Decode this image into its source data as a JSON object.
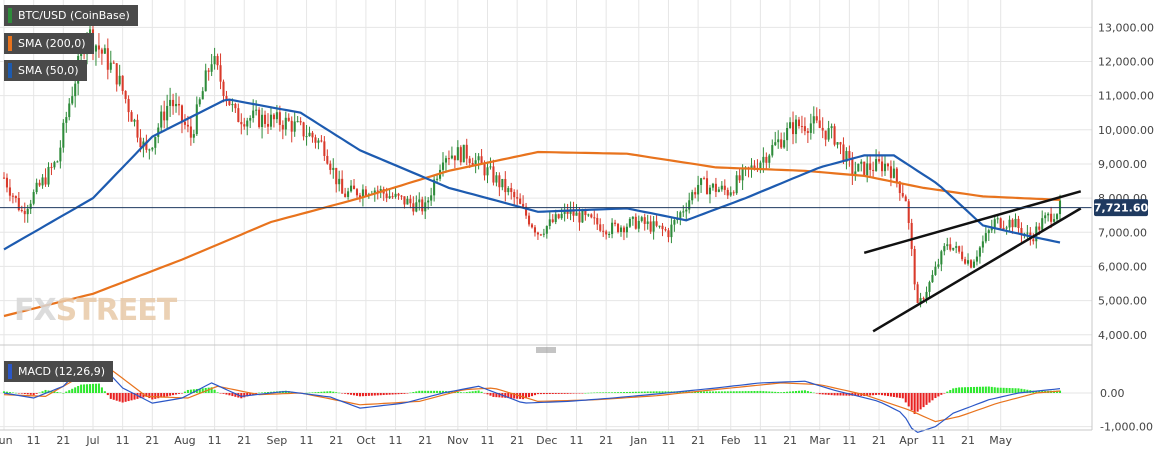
{
  "colors": {
    "up": "#2e8b3a",
    "down": "#d93a2b",
    "sma200": "#e8731d",
    "sma50": "#1d5bb0",
    "price_tag_bg": "#1f3a60",
    "macd_line": "#2b57c7",
    "signal_line": "#e8731d",
    "hist_pos": "#2ee82e",
    "hist_neg": "#e82020",
    "grid": "#e6e6e6",
    "trendline": "#111111"
  },
  "legend": {
    "main_series": "BTC/USD (CoinBase)",
    "sma200": "SMA (200,0)",
    "sma50": "SMA (50,0)",
    "macd": "MACD (12,26,9)"
  },
  "watermark": {
    "fx": "FX",
    "street": "STREET"
  },
  "price_tag": "7,721.60",
  "chart_data": [
    {
      "type": "candlestick",
      "ylim": [
        3700,
        13800
      ],
      "y_ticks": [
        "4,000.00",
        "5,000.00",
        "6,000.00",
        "7,000.00",
        "8,000.00",
        "9,000.00",
        "10,000.00",
        "11,000.00",
        "12,000.00",
        "13,000.00"
      ],
      "y_tick_values": [
        4000,
        5000,
        6000,
        7000,
        8000,
        9000,
        10000,
        11000,
        12000,
        13000
      ],
      "x_ticks": [
        "Jun",
        "11",
        "21",
        "Jul",
        "11",
        "21",
        "Aug",
        "11",
        "21",
        "Sep",
        "11",
        "21",
        "Oct",
        "11",
        "21",
        "Nov",
        "11",
        "21",
        "Dec",
        "11",
        "21",
        "Jan",
        "11",
        "21",
        "Feb",
        "11",
        "21",
        "Mar",
        "11",
        "21",
        "Apr",
        "11",
        "21",
        "May"
      ],
      "last_price": 7721.6,
      "price_waypoints": [
        [
          0,
          8600
        ],
        [
          6,
          7600
        ],
        [
          18,
          9100
        ],
        [
          22,
          10800
        ],
        [
          28,
          12900
        ],
        [
          38,
          11600
        ],
        [
          48,
          9300
        ],
        [
          56,
          10900
        ],
        [
          63,
          9800
        ],
        [
          70,
          12100
        ],
        [
          78,
          10400
        ],
        [
          88,
          10300
        ],
        [
          96,
          10200
        ],
        [
          104,
          9800
        ],
        [
          108,
          9500
        ],
        [
          114,
          8100
        ],
        [
          124,
          8300
        ],
        [
          132,
          8000
        ],
        [
          142,
          7700
        ],
        [
          148,
          9300
        ],
        [
          156,
          9300
        ],
        [
          164,
          8700
        ],
        [
          172,
          8000
        ],
        [
          180,
          7000
        ],
        [
          190,
          7600
        ],
        [
          204,
          7100
        ],
        [
          214,
          7300
        ],
        [
          224,
          7000
        ],
        [
          234,
          8400
        ],
        [
          244,
          8200
        ],
        [
          256,
          9200
        ],
        [
          266,
          10100
        ],
        [
          272,
          10200
        ],
        [
          280,
          9800
        ],
        [
          286,
          8800
        ],
        [
          298,
          9000
        ],
        [
          304,
          8000
        ],
        [
          306,
          6400
        ],
        [
          308,
          4800
        ],
        [
          312,
          5500
        ],
        [
          318,
          6700
        ],
        [
          326,
          6100
        ],
        [
          334,
          7300
        ],
        [
          340,
          7300
        ],
        [
          346,
          6800
        ],
        [
          350,
          7300
        ],
        [
          356,
          7721
        ]
      ],
      "sma200_waypoints": [
        [
          0,
          4550
        ],
        [
          30,
          5200
        ],
        [
          60,
          6200
        ],
        [
          90,
          7300
        ],
        [
          120,
          8000
        ],
        [
          150,
          8800
        ],
        [
          180,
          9350
        ],
        [
          210,
          9300
        ],
        [
          240,
          8900
        ],
        [
          270,
          8800
        ],
        [
          290,
          8650
        ],
        [
          310,
          8300
        ],
        [
          330,
          8050
        ],
        [
          356,
          7950
        ]
      ],
      "sma50_waypoints": [
        [
          0,
          6500
        ],
        [
          30,
          8000
        ],
        [
          50,
          9800
        ],
        [
          75,
          10900
        ],
        [
          100,
          10500
        ],
        [
          120,
          9400
        ],
        [
          150,
          8300
        ],
        [
          180,
          7600
        ],
        [
          210,
          7700
        ],
        [
          230,
          7350
        ],
        [
          250,
          8000
        ],
        [
          275,
          8900
        ],
        [
          290,
          9250
        ],
        [
          300,
          9250
        ],
        [
          315,
          8400
        ],
        [
          330,
          7200
        ],
        [
          345,
          6900
        ],
        [
          356,
          6700
        ]
      ],
      "wedge_upper": [
        [
          290,
          6400
        ],
        [
          363,
          8200
        ]
      ],
      "wedge_lower": [
        [
          293,
          4100
        ],
        [
          363,
          7700
        ]
      ]
    },
    {
      "type": "macd",
      "ylim": [
        -1100,
        1100
      ],
      "y_ticks": [
        "0.00",
        "-1,000.00"
      ],
      "y_tick_values": [
        0,
        -1000
      ],
      "macd_waypoints": [
        [
          0,
          0
        ],
        [
          10,
          -150
        ],
        [
          20,
          200
        ],
        [
          26,
          750
        ],
        [
          32,
          900
        ],
        [
          40,
          150
        ],
        [
          50,
          -300
        ],
        [
          60,
          -150
        ],
        [
          70,
          300
        ],
        [
          80,
          -100
        ],
        [
          95,
          50
        ],
        [
          110,
          -120
        ],
        [
          120,
          -450
        ],
        [
          135,
          -300
        ],
        [
          148,
          0
        ],
        [
          160,
          200
        ],
        [
          175,
          -300
        ],
        [
          190,
          -250
        ],
        [
          205,
          -150
        ],
        [
          220,
          -30
        ],
        [
          240,
          150
        ],
        [
          255,
          300
        ],
        [
          270,
          350
        ],
        [
          280,
          80
        ],
        [
          295,
          -250
        ],
        [
          303,
          -600
        ],
        [
          307,
          -1200
        ],
        [
          314,
          -1000
        ],
        [
          320,
          -600
        ],
        [
          332,
          -200
        ],
        [
          342,
          0
        ],
        [
          356,
          130
        ]
      ],
      "signal_waypoints": [
        [
          0,
          -50
        ],
        [
          14,
          -100
        ],
        [
          26,
          500
        ],
        [
          36,
          700
        ],
        [
          48,
          -100
        ],
        [
          62,
          -150
        ],
        [
          72,
          200
        ],
        [
          86,
          -50
        ],
        [
          100,
          0
        ],
        [
          120,
          -350
        ],
        [
          140,
          -250
        ],
        [
          155,
          100
        ],
        [
          165,
          150
        ],
        [
          180,
          -250
        ],
        [
          200,
          -200
        ],
        [
          220,
          -80
        ],
        [
          245,
          150
        ],
        [
          262,
          300
        ],
        [
          275,
          250
        ],
        [
          290,
          -50
        ],
        [
          305,
          -500
        ],
        [
          314,
          -850
        ],
        [
          322,
          -700
        ],
        [
          335,
          -300
        ],
        [
          348,
          0
        ],
        [
          356,
          60
        ]
      ]
    }
  ]
}
